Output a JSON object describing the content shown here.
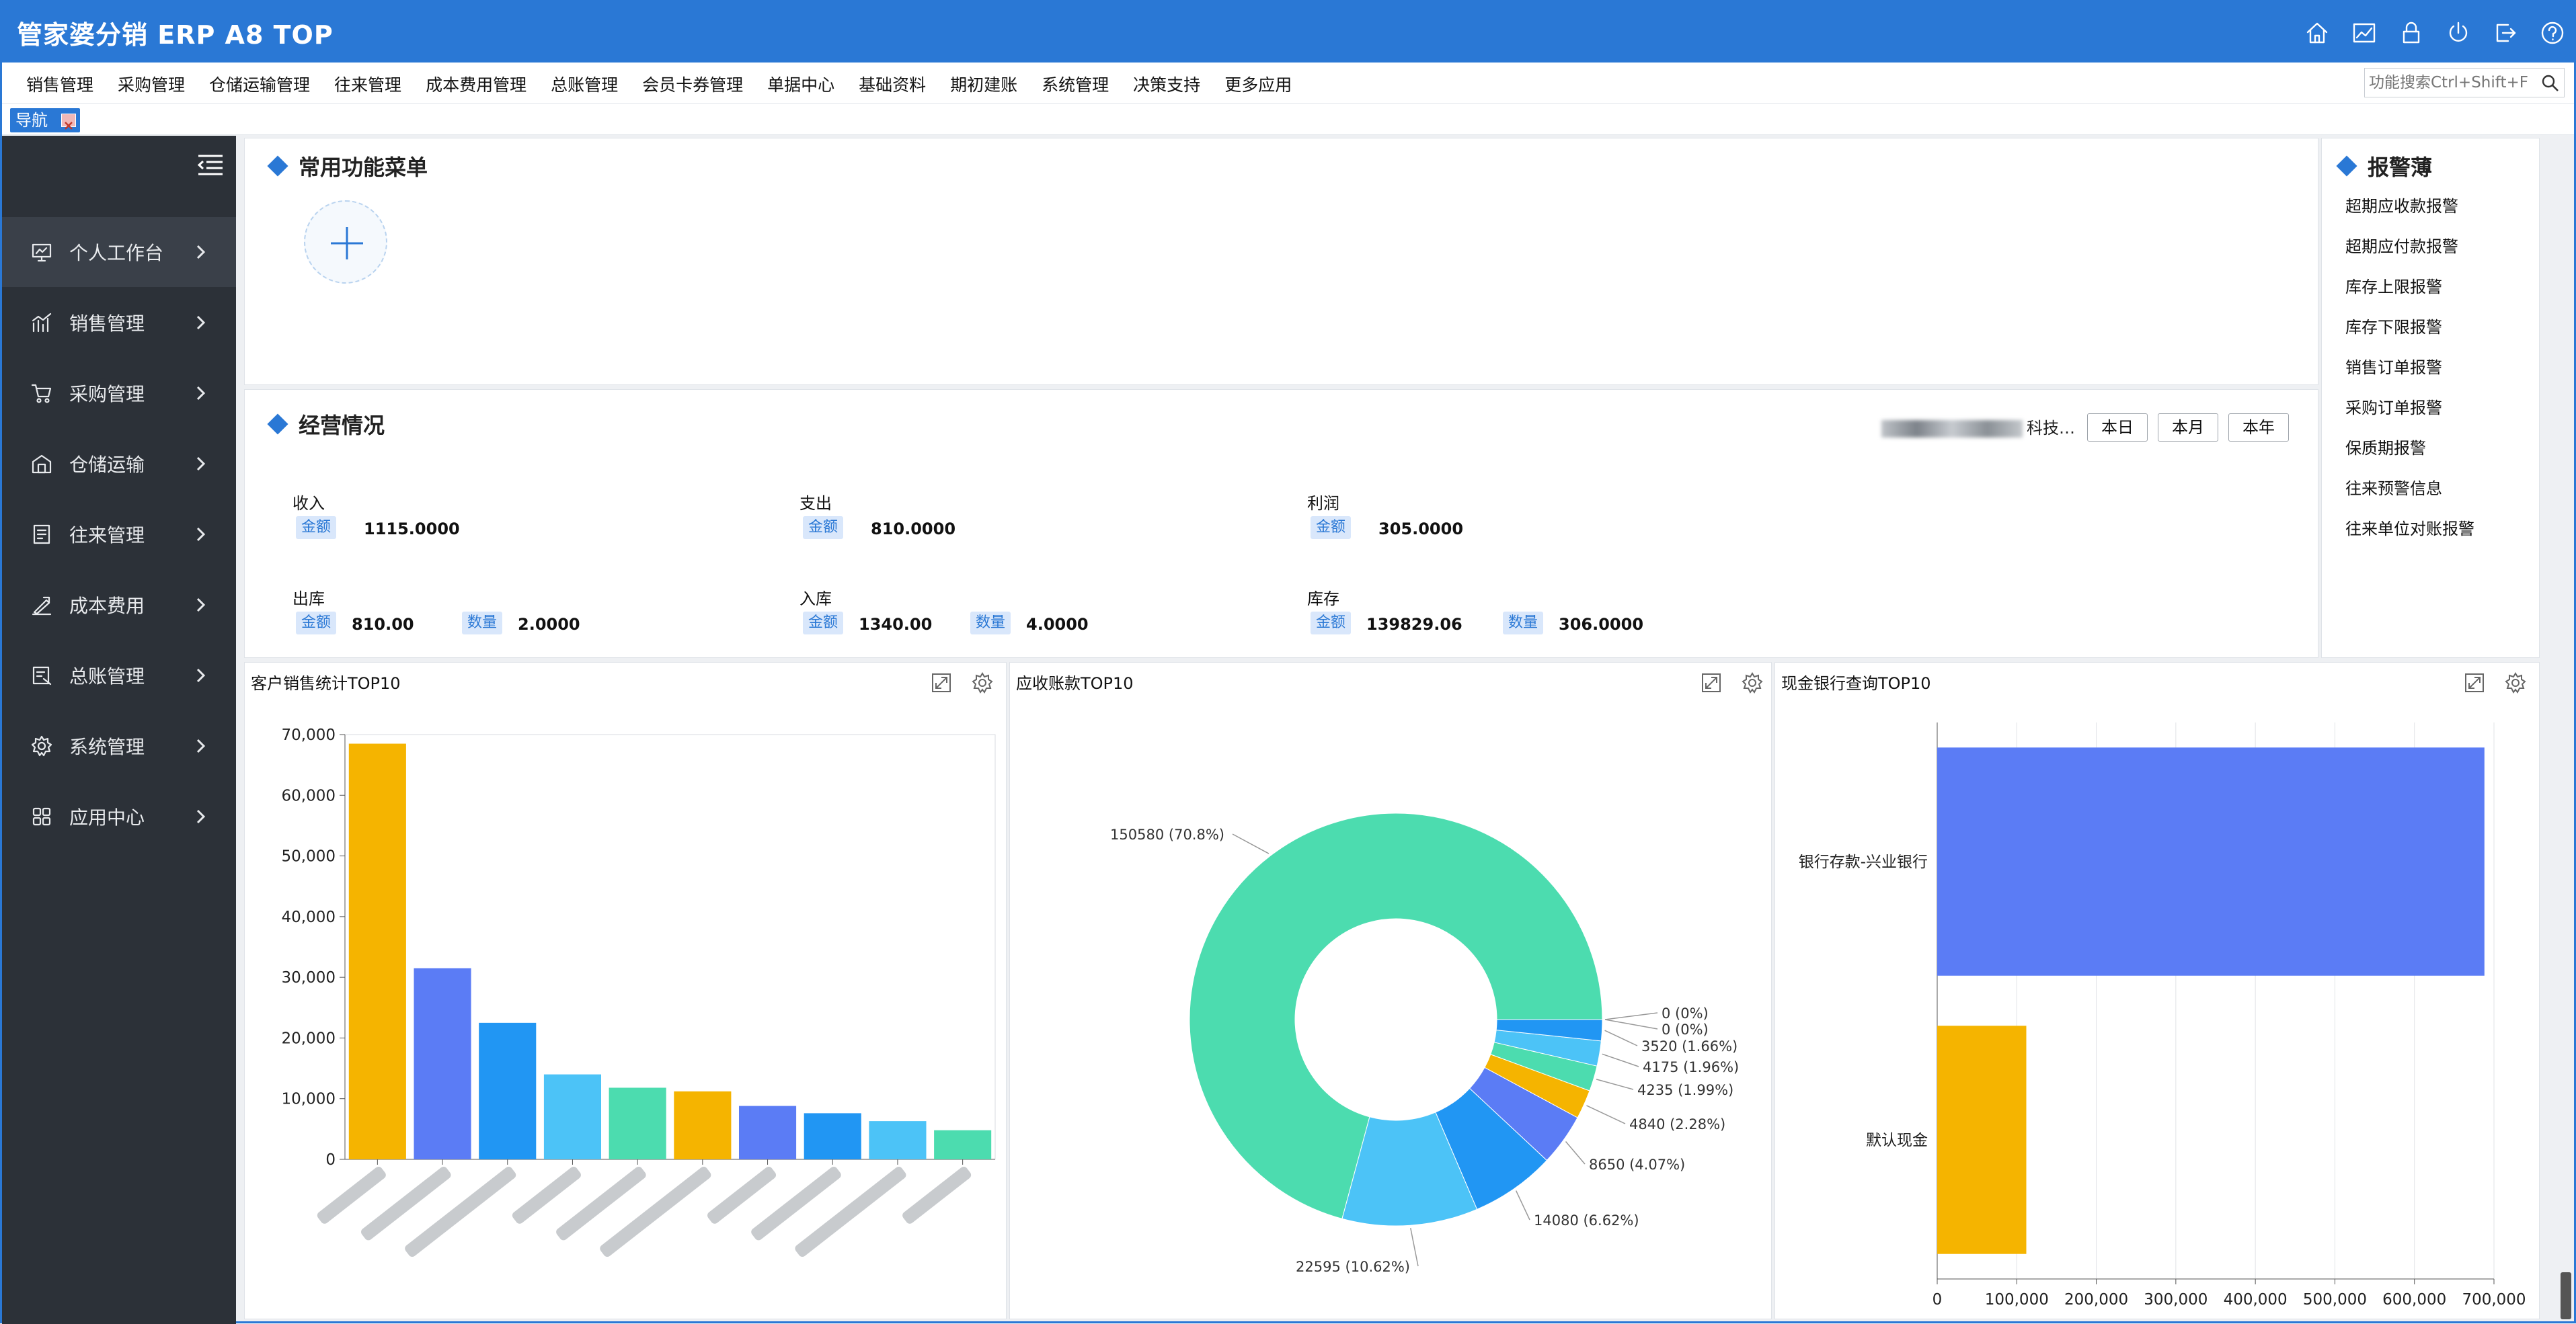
{
  "app": {
    "title": "管家婆分销 ERP A8 TOP"
  },
  "top_icons": [
    "home-icon",
    "chart-icon",
    "lock-icon",
    "power-icon",
    "exit-icon",
    "help-icon"
  ],
  "menu": {
    "items": [
      "销售管理",
      "采购管理",
      "仓储运输管理",
      "往来管理",
      "成本费用管理",
      "总账管理",
      "会员卡券管理",
      "单据中心",
      "基础资料",
      "期初建账",
      "系统管理",
      "决策支持",
      "更多应用"
    ],
    "search_placeholder": "功能搜索Ctrl+Shift+F"
  },
  "tabs": [
    {
      "label": "导航"
    }
  ],
  "sidebar": {
    "items": [
      {
        "label": "个人工作台",
        "icon": "monitor-icon",
        "active": true
      },
      {
        "label": "销售管理",
        "icon": "sales-chart-icon"
      },
      {
        "label": "采购管理",
        "icon": "cart-icon"
      },
      {
        "label": "仓储运输",
        "icon": "warehouse-icon"
      },
      {
        "label": "往来管理",
        "icon": "ledger-icon"
      },
      {
        "label": "成本费用",
        "icon": "cost-icon"
      },
      {
        "label": "总账管理",
        "icon": "account-icon"
      },
      {
        "label": "系统管理",
        "icon": "gear-icon"
      },
      {
        "label": "应用中心",
        "icon": "apps-icon"
      }
    ]
  },
  "common_menu": {
    "title": "常用功能菜单"
  },
  "operations": {
    "title": "经营情况",
    "company": "科技…",
    "periods": [
      "本日",
      "本月",
      "本年"
    ],
    "amount_tag": "金额",
    "qty_tag": "数量",
    "income": {
      "label": "收入",
      "amount": "1115.0000"
    },
    "expense": {
      "label": "支出",
      "amount": "810.0000"
    },
    "profit": {
      "label": "利润",
      "amount": "305.0000"
    },
    "outbound": {
      "label": "出库",
      "amount": "810.00",
      "qty": "2.0000"
    },
    "inbound": {
      "label": "入库",
      "amount": "1340.00",
      "qty": "4.0000"
    },
    "stock": {
      "label": "库存",
      "amount": "139829.06",
      "qty": "306.0000"
    }
  },
  "alerts": {
    "title": "报警薄",
    "items": [
      "超期应收款报警",
      "超期应付款报警",
      "库存上限报警",
      "库存下限报警",
      "销售订单报警",
      "采购订单报警",
      "保质期报警",
      "往来预警信息",
      "往来单位对账报警"
    ]
  },
  "chart_data": [
    {
      "type": "bar",
      "title": "客户销售统计TOP10",
      "ylim": [
        0,
        70000
      ],
      "yticks": [
        "0",
        "10,000",
        "20,000",
        "30,000",
        "40,000",
        "50,000",
        "60,000",
        "70,000"
      ],
      "values": [
        68500,
        31500,
        22500,
        14000,
        11800,
        11200,
        8800,
        7600,
        6300,
        4800
      ],
      "colors": [
        "#f5b400",
        "#5b7cf5",
        "#2196f3",
        "#4cc3f7",
        "#4cdcaf",
        "#f5b400",
        "#5b7cf5",
        "#2196f3",
        "#4cc3f7",
        "#4cdcaf"
      ],
      "categories": [
        "",
        "",
        "",
        "",
        "",
        "",
        "",
        "",
        "",
        ""
      ],
      "categories_blurred": true,
      "category_suffixes": [
        "",
        "",
        "",
        "",
        "",
        "",
        "",
        "",
        "",
        ""
      ]
    },
    {
      "type": "pie",
      "title": "应收账款TOP10",
      "donut": true,
      "slices": [
        {
          "value": 150580,
          "label": "150580 (70.8%)",
          "color": "#4cdcaf"
        },
        {
          "value": 22595,
          "label": "22595 (10.62%)",
          "color": "#4cc3f7"
        },
        {
          "value": 14080,
          "label": "14080 (6.62%)",
          "color": "#2196f3"
        },
        {
          "value": 8650,
          "label": "8650 (4.07%)",
          "color": "#5b7cf5"
        },
        {
          "value": 4840,
          "label": "4840 (2.28%)",
          "color": "#f5b400"
        },
        {
          "value": 4235,
          "label": "4235 (1.99%)",
          "color": "#4cdcaf"
        },
        {
          "value": 4175,
          "label": "4175 (1.96%)",
          "color": "#4cc3f7"
        },
        {
          "value": 3520,
          "label": "3520 (1.66%)",
          "color": "#2196f3"
        },
        {
          "value": 0,
          "label": "0 (0%)",
          "color": "#5b7cf5"
        },
        {
          "value": 0,
          "label": "0 (0%)",
          "color": "#f5b400"
        }
      ]
    },
    {
      "type": "bar",
      "orientation": "horizontal",
      "title": "现金银行查询TOP10",
      "xlim": [
        0,
        700000
      ],
      "xticks": [
        "0",
        "100,000",
        "200,000",
        "300,000",
        "400,000",
        "500,000",
        "600,000",
        "700,000"
      ],
      "categories": [
        "银行存款-兴业银行",
        "默认现金"
      ],
      "values": [
        688000,
        112000
      ],
      "colors": [
        "#5b7cf5",
        "#f5b400"
      ]
    }
  ]
}
